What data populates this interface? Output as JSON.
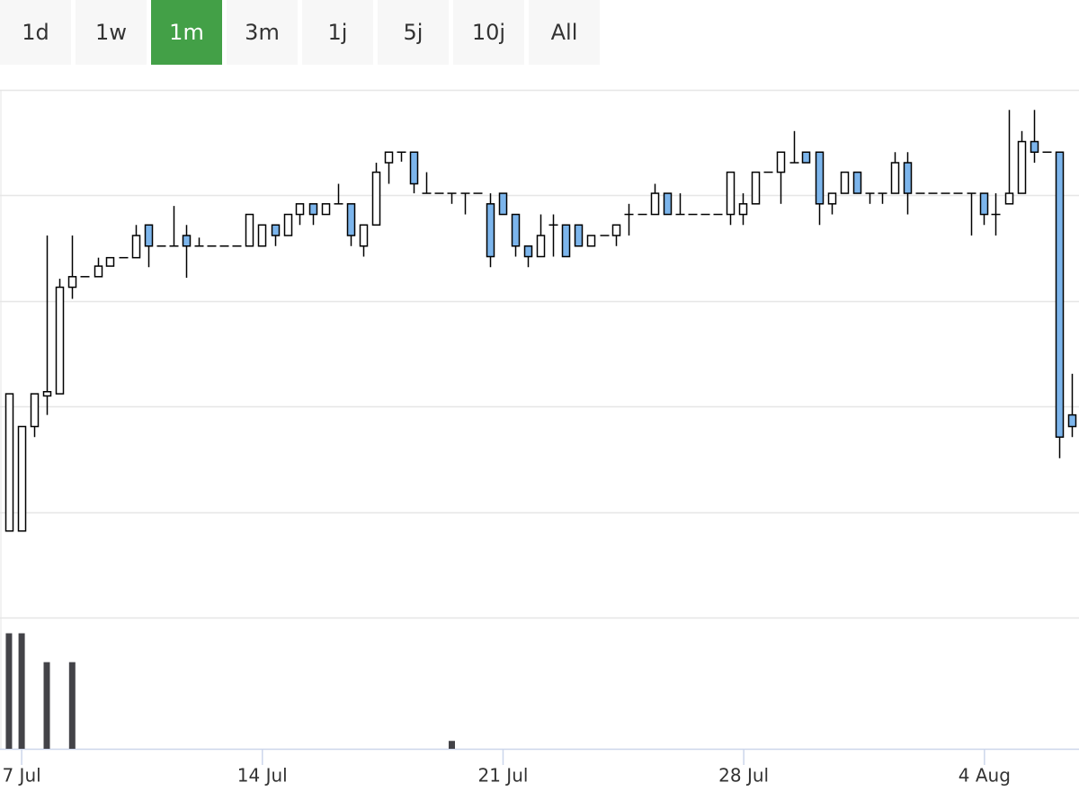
{
  "range_buttons": {
    "labels": [
      "1d",
      "1w",
      "1m",
      "3m",
      "1j",
      "5j",
      "10j",
      "All"
    ],
    "selected": 2,
    "color": "#f7f7f7",
    "selected_color": "#43a047"
  },
  "chart_data": {
    "type": "candlestick",
    "up_color": "#ffffff",
    "down_color": "#7cb5ec",
    "grid": true,
    "xlim": [
      -0.63,
      30.75
    ],
    "xticks": [
      {
        "value": 0,
        "label": "7 Jul"
      },
      {
        "value": 7,
        "label": "14 Jul"
      },
      {
        "value": 14,
        "label": "21 Jul"
      },
      {
        "value": 21,
        "label": "28 Jul"
      },
      {
        "value": 28,
        "label": "4 Aug"
      }
    ],
    "ylim": [
      0,
      5
    ],
    "yticks": [
      0,
      1,
      2,
      3,
      4,
      5
    ],
    "x": [
      -0.37,
      0.0,
      0.37,
      0.73,
      1.1,
      1.47,
      1.84,
      2.21,
      2.57,
      2.94,
      3.31,
      3.68,
      4.05,
      4.41,
      4.78,
      5.15,
      5.52,
      5.89,
      6.25,
      6.62,
      6.99,
      7.36,
      7.73,
      8.09,
      8.46,
      8.83,
      9.2,
      9.57,
      9.93,
      10.3,
      10.67,
      11.04,
      11.41,
      11.77,
      12.14,
      12.51,
      12.88,
      13.25,
      13.61,
      13.98,
      14.35,
      14.72,
      15.09,
      15.45,
      15.82,
      16.19,
      16.56,
      16.93,
      17.29,
      17.66,
      18.03,
      18.4,
      18.77,
      19.13,
      19.5,
      19.87,
      20.24,
      20.61,
      20.97,
      21.34,
      21.71,
      22.08,
      22.45,
      22.81,
      23.18,
      23.55,
      23.92,
      24.29,
      24.65,
      25.02,
      25.39,
      25.76,
      26.13,
      26.49,
      26.86,
      27.23,
      27.6,
      27.97,
      28.33,
      28.7,
      29.07,
      29.44,
      29.81,
      30.17,
      30.54
    ],
    "open": [
      0.82,
      0.82,
      1.81,
      2.1,
      2.12,
      3.13,
      3.23,
      3.23,
      3.33,
      3.41,
      3.41,
      3.72,
      3.52,
      3.52,
      3.62,
      3.52,
      3.52,
      3.52,
      3.52,
      3.52,
      3.52,
      3.72,
      3.62,
      3.82,
      3.92,
      3.82,
      3.92,
      3.92,
      3.52,
      3.72,
      4.31,
      4.41,
      4.41,
      4.02,
      4.02,
      4.02,
      4.02,
      4.02,
      3.92,
      4.02,
      3.82,
      3.52,
      3.42,
      3.72,
      3.72,
      3.72,
      3.52,
      3.62,
      3.62,
      3.82,
      3.82,
      3.82,
      4.02,
      3.82,
      3.82,
      3.82,
      3.82,
      3.82,
      3.82,
      3.92,
      4.22,
      4.22,
      4.31,
      4.41,
      4.41,
      3.92,
      4.02,
      4.22,
      4.02,
      4.02,
      4.02,
      4.31,
      4.02,
      4.02,
      4.02,
      4.02,
      4.02,
      4.02,
      3.82,
      3.92,
      4.02,
      4.51,
      4.41,
      4.41,
      1.92
    ],
    "high": [
      2.12,
      1.81,
      2.12,
      3.62,
      3.21,
      3.62,
      3.23,
      3.41,
      3.41,
      3.41,
      3.72,
      3.72,
      3.52,
      3.9,
      3.72,
      3.6,
      3.52,
      3.52,
      3.52,
      3.82,
      3.72,
      3.72,
      3.82,
      3.92,
      3.92,
      3.92,
      4.11,
      3.92,
      3.72,
      4.31,
      4.41,
      4.41,
      4.41,
      4.22,
      4.02,
      4.02,
      4.02,
      4.02,
      4.02,
      4.02,
      3.82,
      3.52,
      3.82,
      3.82,
      3.72,
      3.72,
      3.62,
      3.62,
      3.72,
      3.92,
      3.82,
      4.11,
      4.02,
      4.02,
      3.82,
      3.82,
      3.82,
      4.22,
      4.02,
      4.22,
      4.22,
      4.41,
      4.61,
      4.41,
      4.41,
      4.02,
      4.22,
      4.22,
      4.02,
      4.02,
      4.41,
      4.41,
      4.02,
      4.02,
      4.02,
      4.02,
      4.02,
      4.02,
      4.02,
      4.81,
      4.61,
      4.81,
      4.41,
      4.41,
      2.31
    ],
    "low": [
      0.82,
      0.82,
      1.71,
      1.92,
      2.12,
      3.02,
      3.23,
      3.23,
      3.33,
      3.41,
      3.41,
      3.32,
      3.52,
      3.52,
      3.22,
      3.52,
      3.52,
      3.52,
      3.52,
      3.52,
      3.52,
      3.52,
      3.62,
      3.72,
      3.72,
      3.82,
      3.92,
      3.52,
      3.42,
      3.72,
      4.11,
      4.32,
      4.02,
      4.02,
      4.02,
      3.92,
      3.82,
      4.02,
      3.32,
      3.82,
      3.42,
      3.32,
      3.42,
      3.42,
      3.42,
      3.52,
      3.52,
      3.62,
      3.52,
      3.62,
      3.82,
      3.82,
      3.82,
      3.82,
      3.82,
      3.82,
      3.82,
      3.72,
      3.72,
      3.92,
      4.22,
      3.92,
      4.31,
      4.31,
      3.72,
      3.82,
      4.02,
      4.02,
      3.92,
      3.92,
      4.02,
      3.82,
      4.02,
      4.02,
      4.02,
      4.02,
      3.62,
      3.72,
      3.62,
      3.92,
      4.02,
      4.31,
      4.41,
      1.51,
      1.71
    ],
    "close": [
      2.12,
      1.81,
      2.12,
      2.14,
      3.13,
      3.23,
      3.23,
      3.33,
      3.41,
      3.41,
      3.62,
      3.52,
      3.52,
      3.52,
      3.52,
      3.52,
      3.52,
      3.52,
      3.52,
      3.82,
      3.72,
      3.62,
      3.82,
      3.92,
      3.82,
      3.92,
      3.92,
      3.62,
      3.72,
      4.22,
      4.41,
      4.41,
      4.11,
      4.02,
      4.02,
      4.02,
      4.02,
      4.02,
      3.42,
      3.82,
      3.52,
      3.42,
      3.62,
      3.72,
      3.42,
      3.52,
      3.62,
      3.62,
      3.72,
      3.82,
      3.82,
      4.02,
      3.82,
      3.82,
      3.82,
      3.82,
      3.82,
      4.22,
      3.92,
      4.22,
      4.22,
      4.41,
      4.31,
      4.31,
      3.92,
      4.02,
      4.22,
      4.02,
      4.02,
      4.02,
      4.31,
      4.02,
      4.02,
      4.02,
      4.02,
      4.02,
      4.02,
      3.82,
      3.82,
      4.02,
      4.51,
      4.41,
      4.41,
      1.71,
      1.81
    ],
    "volume": {
      "color": "#434348",
      "ylim": [
        0,
        1
      ],
      "values": [
        0.88,
        0.88,
        0,
        0.66,
        0,
        0.66,
        0,
        0,
        0,
        0,
        0,
        0,
        0,
        0,
        0,
        0,
        0,
        0,
        0,
        0,
        0,
        0,
        0,
        0,
        0,
        0,
        0,
        0,
        0,
        0,
        0,
        0,
        0,
        0,
        0,
        0.06,
        0,
        0,
        0,
        0,
        0,
        0,
        0,
        0,
        0,
        0,
        0,
        0,
        0,
        0,
        0,
        0,
        0,
        0,
        0,
        0,
        0,
        0,
        0,
        0,
        0,
        0,
        0,
        0,
        0,
        0,
        0,
        0,
        0,
        0,
        0,
        0,
        0,
        0,
        0,
        0,
        0,
        0,
        0,
        0,
        0,
        0,
        0,
        0,
        0
      ]
    }
  }
}
